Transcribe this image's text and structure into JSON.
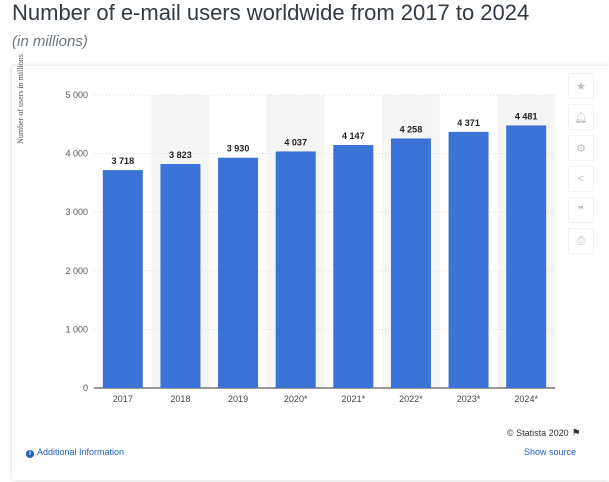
{
  "header": {
    "title": "Number of e-mail users worldwide from 2017 to 2024",
    "subtitle": "(in millions)"
  },
  "chart_data": {
    "type": "bar",
    "categories": [
      "2017",
      "2018",
      "2019",
      "2020*",
      "2021*",
      "2022*",
      "2023*",
      "2024*"
    ],
    "values": [
      3718,
      3823,
      3930,
      4037,
      4147,
      4258,
      4371,
      4481
    ],
    "value_labels": [
      "3 718",
      "3 823",
      "3 930",
      "4 037",
      "4 147",
      "4 258",
      "4 371",
      "4 481"
    ],
    "title": "",
    "xlabel": "",
    "ylabel": "Number of users in millions",
    "ylim": [
      0,
      5000
    ],
    "yticks": [
      0,
      1000,
      2000,
      3000,
      4000,
      5000
    ],
    "ytick_labels": [
      "0",
      "1 000",
      "2 000",
      "3 000",
      "4 000",
      "5 000"
    ],
    "grid": true,
    "bar_color": "#3b73d6"
  },
  "toolbar": {
    "icons": [
      "star-icon",
      "bell-icon",
      "gear-icon",
      "share-icon",
      "quote-icon",
      "print-icon"
    ]
  },
  "footer": {
    "copyright": "© Statista 2020",
    "additional_info": "Additional Information",
    "show_source": "Show source"
  },
  "colors": {
    "accent": "#3b73d6",
    "link": "#1f5fbf",
    "alt_band": "#f5f5f5"
  }
}
